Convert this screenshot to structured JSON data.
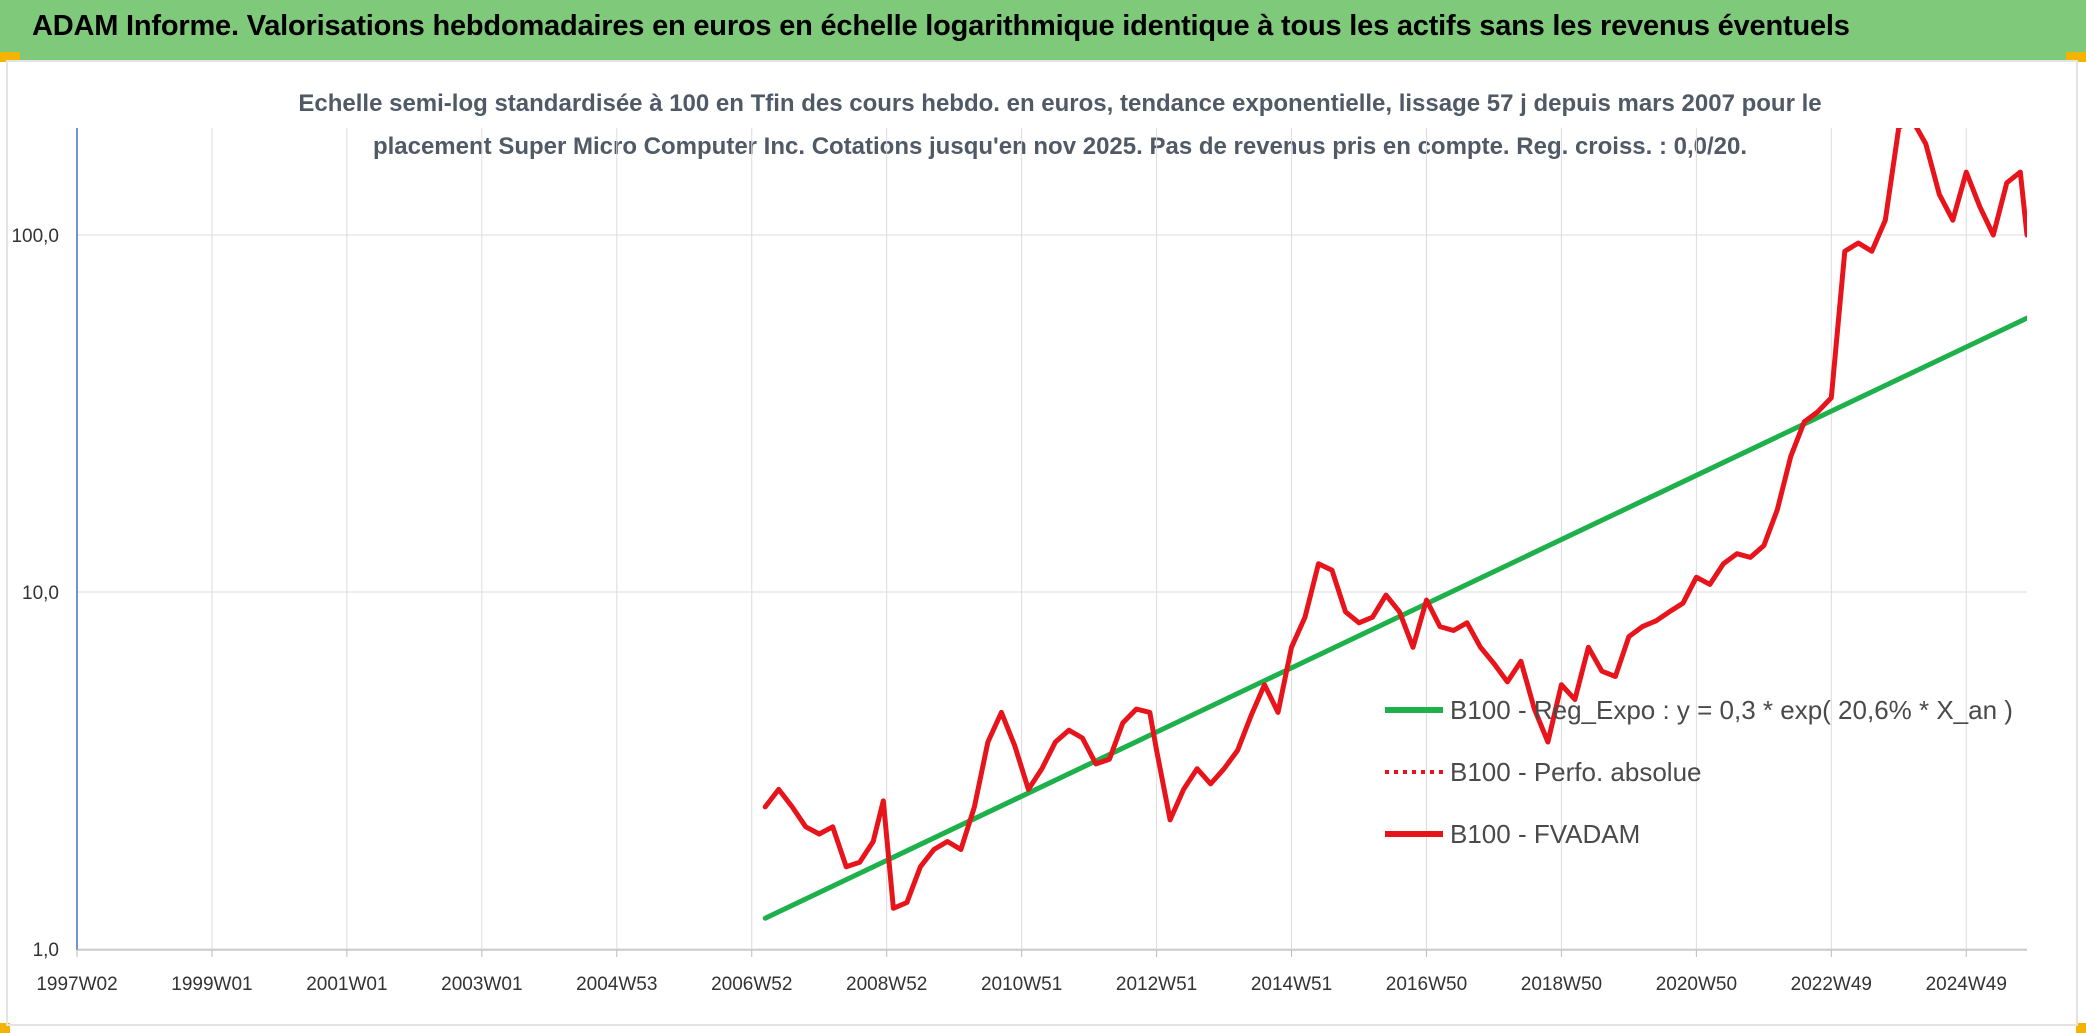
{
  "header": {
    "title": "ADAM Informe. Valorisations hebdomadaires en euros en échelle logarithmique identique à tous les actifs sans les revenus éventuels"
  },
  "chart_data": {
    "type": "line",
    "title_line1": "Echelle semi-log standardisée à 100 en Tfin des cours hebdo. en euros, tendance exponentielle, lissage 57 j depuis mars 2007 pour le",
    "title_line2": "placement Super Micro Computer Inc. Cotations jusqu'en nov 2025. Pas de revenus pris en compte. Reg. croiss. : 0,0/20.",
    "y_scale": "log",
    "ylim": [
      1,
      200
    ],
    "y_ticks": [
      1,
      10,
      100
    ],
    "y_tick_labels": [
      "1,0",
      "10,0",
      "100,0"
    ],
    "x_tick_labels": [
      "1997W02",
      "1999W01",
      "2001W01",
      "2003W01",
      "2004W53",
      "2006W52",
      "2008W52",
      "2010W51",
      "2012W51",
      "2014W51",
      "2016W50",
      "2018W50",
      "2020W50",
      "2022W49",
      "2024W49"
    ],
    "x_tick_years": [
      1997.0,
      1999.0,
      2001.0,
      2003.0,
      2005.0,
      2007.0,
      2009.0,
      2011.0,
      2013.0,
      2015.0,
      2017.0,
      2019.0,
      2021.0,
      2023.0,
      2025.0
    ],
    "xlim": [
      1997.0,
      2025.9
    ],
    "grid": true,
    "legend_position": "right",
    "colors": {
      "trend": "#1db04b",
      "perf": "#e8141b",
      "fvadam": "#e8141b"
    },
    "series": [
      {
        "name": "B100 - Reg_Expo : y = 0,3 * exp( 20,6% *  X_an )",
        "style": "solid",
        "x": [
          2007.2,
          2025.9
        ],
        "y": [
          1.22,
          58.5
        ]
      },
      {
        "name": "B100 - Perfo. absolue",
        "style": "dotted",
        "x": [],
        "y": []
      },
      {
        "name": "B100 - FVADAM",
        "style": "solid",
        "x": [
          2007.2,
          2007.4,
          2007.6,
          2007.8,
          2008.0,
          2008.2,
          2008.4,
          2008.6,
          2008.8,
          2008.95,
          2009.1,
          2009.3,
          2009.5,
          2009.7,
          2009.9,
          2010.1,
          2010.3,
          2010.5,
          2010.7,
          2010.9,
          2011.1,
          2011.3,
          2011.5,
          2011.7,
          2011.9,
          2012.1,
          2012.3,
          2012.5,
          2012.7,
          2012.9,
          2013.0,
          2013.2,
          2013.4,
          2013.6,
          2013.8,
          2014.0,
          2014.2,
          2014.4,
          2014.6,
          2014.8,
          2015.0,
          2015.2,
          2015.4,
          2015.6,
          2015.8,
          2016.0,
          2016.2,
          2016.4,
          2016.6,
          2016.8,
          2017.0,
          2017.2,
          2017.4,
          2017.6,
          2017.8,
          2018.0,
          2018.2,
          2018.4,
          2018.6,
          2018.8,
          2019.0,
          2019.2,
          2019.4,
          2019.6,
          2019.8,
          2020.0,
          2020.2,
          2020.4,
          2020.6,
          2020.8,
          2021.0,
          2021.2,
          2021.4,
          2021.6,
          2021.8,
          2022.0,
          2022.2,
          2022.4,
          2022.6,
          2022.8,
          2023.0,
          2023.2,
          2023.4,
          2023.6,
          2023.8,
          2024.0,
          2024.2,
          2024.4,
          2024.6,
          2024.8,
          2025.0,
          2025.2,
          2025.4,
          2025.6,
          2025.8,
          2025.9
        ],
        "y": [
          2.5,
          2.8,
          2.5,
          2.2,
          2.1,
          2.2,
          1.7,
          1.75,
          2.0,
          2.6,
          1.3,
          1.35,
          1.7,
          1.9,
          2.0,
          1.9,
          2.5,
          3.8,
          4.6,
          3.7,
          2.8,
          3.2,
          3.8,
          4.1,
          3.9,
          3.3,
          3.4,
          4.3,
          4.7,
          4.6,
          3.6,
          2.3,
          2.8,
          3.2,
          2.9,
          3.2,
          3.6,
          4.5,
          5.5,
          4.6,
          7.0,
          8.5,
          12.0,
          11.5,
          8.8,
          8.2,
          8.5,
          9.8,
          8.8,
          7.0,
          9.5,
          8.0,
          7.8,
          8.2,
          7.0,
          6.3,
          5.6,
          6.4,
          4.7,
          3.8,
          5.5,
          5.0,
          7.0,
          6.0,
          5.8,
          7.5,
          8.0,
          8.3,
          8.8,
          9.3,
          11.0,
          10.5,
          12.0,
          12.8,
          12.5,
          13.5,
          17.0,
          24.0,
          30.0,
          32.0,
          35.0,
          90.0,
          95.0,
          90.0,
          110.0,
          200.0,
          210.0,
          180.0,
          130.0,
          110.0,
          150.0,
          120.0,
          100.0,
          140.0,
          150.0,
          100.0
        ]
      }
    ]
  }
}
